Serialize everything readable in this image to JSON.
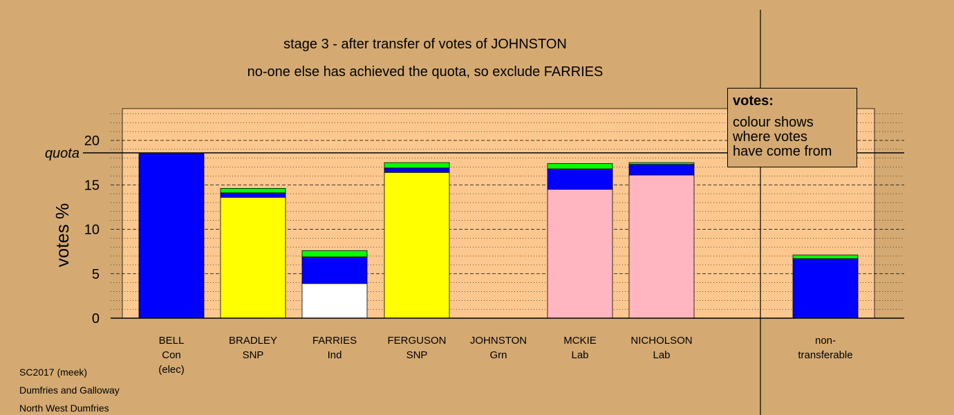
{
  "chart_data": {
    "type": "bar",
    "stacked": true,
    "title": "stage 3 - after transfer of votes of JOHNSTON",
    "subtitle": "no-one else has achieved the quota, so exclude FARRIES",
    "ylabel": "votes %",
    "ylim": [
      0,
      23.5
    ],
    "yticks": [
      "0",
      "5",
      "10",
      "15",
      "20"
    ],
    "quota": 18.6,
    "quota_label": "quota",
    "grid": true,
    "categories": [
      {
        "name": "BELL",
        "party": "Con",
        "note": "(elec)"
      },
      {
        "name": "BRADLEY",
        "party": "SNP",
        "note": ""
      },
      {
        "name": "FARRIES",
        "party": "Ind",
        "note": ""
      },
      {
        "name": "FERGUSON",
        "party": "SNP",
        "note": ""
      },
      {
        "name": "JOHNSTON",
        "party": "Grn",
        "note": ""
      },
      {
        "name": "MCKIE",
        "party": "Lab",
        "note": ""
      },
      {
        "name": "NICHOLSON",
        "party": "Lab",
        "note": ""
      },
      {
        "name": "non-",
        "party": "transferable",
        "note": ""
      }
    ],
    "stacks": [
      [
        {
          "color": "#0000ff",
          "value": 18.5
        }
      ],
      [
        {
          "color": "#ffff00",
          "value": 13.6
        },
        {
          "color": "#0000ff",
          "value": 0.5
        },
        {
          "color": "#00ff00",
          "value": 0.5
        }
      ],
      [
        {
          "color": "#ffffff",
          "value": 3.9
        },
        {
          "color": "#0000ff",
          "value": 3.0
        },
        {
          "color": "#00ff00",
          "value": 0.7
        }
      ],
      [
        {
          "color": "#ffff00",
          "value": 16.4
        },
        {
          "color": "#0000ff",
          "value": 0.5
        },
        {
          "color": "#00ff00",
          "value": 0.6
        }
      ],
      [],
      [
        {
          "color": "#ffb6c1",
          "value": 14.5
        },
        {
          "color": "#0000ff",
          "value": 2.3
        },
        {
          "color": "#00ff00",
          "value": 0.6
        }
      ],
      [
        {
          "color": "#ffb6c1",
          "value": 16.1
        },
        {
          "color": "#0000ff",
          "value": 1.2
        },
        {
          "color": "#00ff00",
          "value": 0.2
        }
      ],
      [
        {
          "color": "#0000ff",
          "value": 6.7
        },
        {
          "color": "#00ff00",
          "value": 0.4
        }
      ]
    ]
  },
  "legend": {
    "title": "votes:",
    "text": "colour shows\nwhere votes\nhave come from"
  },
  "footer": {
    "line1": "SC2017 (meek)",
    "line2": "Dumfries and Galloway",
    "line3": "North West Dumfries"
  },
  "colors": {
    "background": "#d4aa72",
    "plot_background": "#fdc88f"
  }
}
